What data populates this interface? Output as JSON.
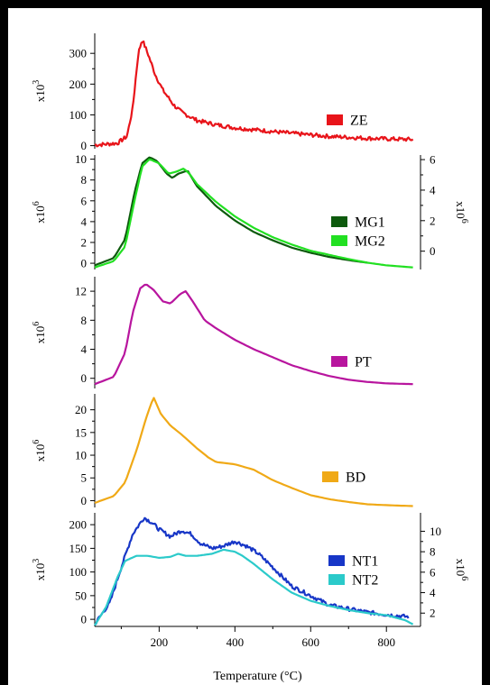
{
  "figure": {
    "xlabel": "Temperature (°C)",
    "x_ticks": [
      200,
      400,
      600,
      800
    ],
    "x_range": [
      30,
      890
    ]
  },
  "chart_data": [
    {
      "type": "line",
      "id": "ZE",
      "left_axis": {
        "label": "x10^3",
        "ticks": [
          0,
          100,
          200,
          300
        ],
        "range": [
          -10,
          365
        ]
      },
      "right_axis": null,
      "series": [
        {
          "name": "ZE",
          "color": "#e8141a",
          "axis": "left",
          "points": [
            [
              30,
              2
            ],
            [
              90,
              8
            ],
            [
              115,
              30
            ],
            [
              130,
              120
            ],
            [
              145,
              300
            ],
            [
              155,
              345
            ],
            [
              170,
              300
            ],
            [
              190,
              230
            ],
            [
              210,
              180
            ],
            [
              240,
              130
            ],
            [
              260,
              108
            ],
            [
              280,
              95
            ],
            [
              300,
              82
            ],
            [
              350,
              68
            ],
            [
              400,
              58
            ],
            [
              450,
              52
            ],
            [
              500,
              46
            ],
            [
              550,
              40
            ],
            [
              600,
              35
            ],
            [
              650,
              30
            ],
            [
              700,
              27
            ],
            [
              750,
              24
            ],
            [
              800,
              22
            ],
            [
              870,
              20
            ]
          ]
        }
      ]
    },
    {
      "type": "line",
      "id": "MG",
      "left_axis": {
        "label": "x10^6",
        "ticks": [
          0,
          2,
          4,
          6,
          8,
          10
        ],
        "range": [
          -0.6,
          10.4
        ]
      },
      "right_axis": {
        "label": "x10^6",
        "ticks": [
          0,
          2,
          4,
          6
        ],
        "range": [
          -1.2,
          6.3
        ]
      },
      "series": [
        {
          "name": "MG1",
          "color": "#0d5a0d",
          "axis": "left",
          "points": [
            [
              30,
              -0.2
            ],
            [
              80,
              0.5
            ],
            [
              110,
              2.3
            ],
            [
              135,
              6.8
            ],
            [
              155,
              9.6
            ],
            [
              175,
              10.2
            ],
            [
              195,
              9.8
            ],
            [
              220,
              8.6
            ],
            [
              235,
              8.2
            ],
            [
              250,
              8.6
            ],
            [
              275,
              8.9
            ],
            [
              300,
              7.4
            ],
            [
              350,
              5.5
            ],
            [
              400,
              4.1
            ],
            [
              450,
              3.0
            ],
            [
              500,
              2.2
            ],
            [
              550,
              1.5
            ],
            [
              600,
              1.0
            ],
            [
              650,
              0.6
            ],
            [
              700,
              0.3
            ],
            [
              750,
              0.05
            ]
          ]
        },
        {
          "name": "MG2",
          "color": "#22e022",
          "axis": "left",
          "points": [
            [
              30,
              -0.4
            ],
            [
              80,
              0.2
            ],
            [
              110,
              1.6
            ],
            [
              135,
              6.0
            ],
            [
              155,
              9.3
            ],
            [
              175,
              10.0
            ],
            [
              200,
              9.6
            ],
            [
              225,
              8.6
            ],
            [
              245,
              8.8
            ],
            [
              265,
              9.1
            ],
            [
              280,
              8.6
            ],
            [
              300,
              7.6
            ],
            [
              350,
              5.9
            ],
            [
              400,
              4.5
            ],
            [
              450,
              3.4
            ],
            [
              500,
              2.5
            ],
            [
              550,
              1.8
            ],
            [
              600,
              1.2
            ],
            [
              650,
              0.8
            ],
            [
              700,
              0.4
            ],
            [
              750,
              0.05
            ],
            [
              800,
              -0.2
            ],
            [
              870,
              -0.4
            ]
          ]
        }
      ]
    },
    {
      "type": "line",
      "id": "PT",
      "left_axis": {
        "label": "x10^6",
        "ticks": [
          0,
          4,
          8,
          12
        ],
        "range": [
          -1.4,
          14.0
        ]
      },
      "right_axis": null,
      "series": [
        {
          "name": "PT",
          "color": "#b8159e",
          "axis": "left",
          "points": [
            [
              30,
              -0.8
            ],
            [
              80,
              0.2
            ],
            [
              110,
              3.5
            ],
            [
              130,
              9.0
            ],
            [
              150,
              12.4
            ],
            [
              165,
              13.0
            ],
            [
              185,
              12.2
            ],
            [
              210,
              10.6
            ],
            [
              230,
              10.3
            ],
            [
              255,
              11.6
            ],
            [
              270,
              12.0
            ],
            [
              290,
              10.5
            ],
            [
              320,
              8.0
            ],
            [
              350,
              6.9
            ],
            [
              400,
              5.3
            ],
            [
              450,
              4.0
            ],
            [
              500,
              2.9
            ],
            [
              550,
              1.8
            ],
            [
              600,
              1.0
            ],
            [
              650,
              0.3
            ],
            [
              700,
              -0.2
            ],
            [
              750,
              -0.5
            ],
            [
              800,
              -0.7
            ],
            [
              870,
              -0.8
            ]
          ]
        }
      ]
    },
    {
      "type": "line",
      "id": "BD",
      "left_axis": {
        "label": "x10^6",
        "ticks": [
          0,
          5,
          10,
          15,
          20
        ],
        "range": [
          -1.5,
          23.5
        ]
      },
      "right_axis": null,
      "series": [
        {
          "name": "BD",
          "color": "#f0a916",
          "axis": "left",
          "points": [
            [
              30,
              -0.5
            ],
            [
              80,
              1.0
            ],
            [
              110,
              4.0
            ],
            [
              140,
              11.0
            ],
            [
              165,
              18.0
            ],
            [
              185,
              22.8
            ],
            [
              205,
              19.0
            ],
            [
              230,
              16.5
            ],
            [
              260,
              14.5
            ],
            [
              300,
              11.5
            ],
            [
              330,
              9.5
            ],
            [
              350,
              8.5
            ],
            [
              400,
              8.0
            ],
            [
              450,
              6.8
            ],
            [
              500,
              4.5
            ],
            [
              550,
              2.8
            ],
            [
              600,
              1.2
            ],
            [
              650,
              0.3
            ],
            [
              700,
              -0.3
            ],
            [
              750,
              -0.8
            ],
            [
              800,
              -1.0
            ],
            [
              870,
              -1.2
            ]
          ]
        }
      ]
    },
    {
      "type": "line",
      "id": "NT",
      "left_axis": {
        "label": "x10^3",
        "ticks": [
          0,
          50,
          100,
          150,
          200
        ],
        "range": [
          -15,
          225
        ]
      },
      "right_axis": {
        "label": "x10^6",
        "ticks": [
          2,
          4,
          6,
          8,
          10
        ],
        "range": [
          0.7,
          11.8
        ]
      },
      "series": [
        {
          "name": "NT1",
          "color": "#1736c7",
          "axis": "left",
          "points": [
            [
              30,
              -10
            ],
            [
              70,
              35
            ],
            [
              100,
              110
            ],
            [
              130,
              180
            ],
            [
              160,
              215
            ],
            [
              180,
              205
            ],
            [
              200,
              190
            ],
            [
              230,
              175
            ],
            [
              260,
              188
            ],
            [
              285,
              180
            ],
            [
              310,
              160
            ],
            [
              340,
              150
            ],
            [
              370,
              155
            ],
            [
              400,
              165
            ],
            [
              430,
              155
            ],
            [
              460,
              140
            ],
            [
              500,
              110
            ],
            [
              550,
              70
            ],
            [
              600,
              50
            ],
            [
              650,
              30
            ],
            [
              700,
              22
            ],
            [
              750,
              15
            ],
            [
              800,
              10
            ],
            [
              860,
              5
            ]
          ]
        },
        {
          "name": "NT2",
          "color": "#2bcaca",
          "axis": "right",
          "points": [
            [
              30,
              0.8
            ],
            [
              60,
              2.6
            ],
            [
              90,
              5.5
            ],
            [
              110,
              7.1
            ],
            [
              140,
              7.6
            ],
            [
              170,
              7.6
            ],
            [
              200,
              7.4
            ],
            [
              230,
              7.5
            ],
            [
              250,
              7.8
            ],
            [
              270,
              7.6
            ],
            [
              300,
              7.6
            ],
            [
              340,
              7.8
            ],
            [
              370,
              8.2
            ],
            [
              400,
              8.0
            ],
            [
              420,
              7.6
            ],
            [
              450,
              6.8
            ],
            [
              500,
              5.3
            ],
            [
              550,
              4.0
            ],
            [
              600,
              3.2
            ],
            [
              650,
              2.7
            ],
            [
              700,
              2.3
            ],
            [
              750,
              2.0
            ],
            [
              800,
              1.8
            ],
            [
              850,
              1.3
            ],
            [
              870,
              0.9
            ]
          ]
        }
      ]
    }
  ]
}
